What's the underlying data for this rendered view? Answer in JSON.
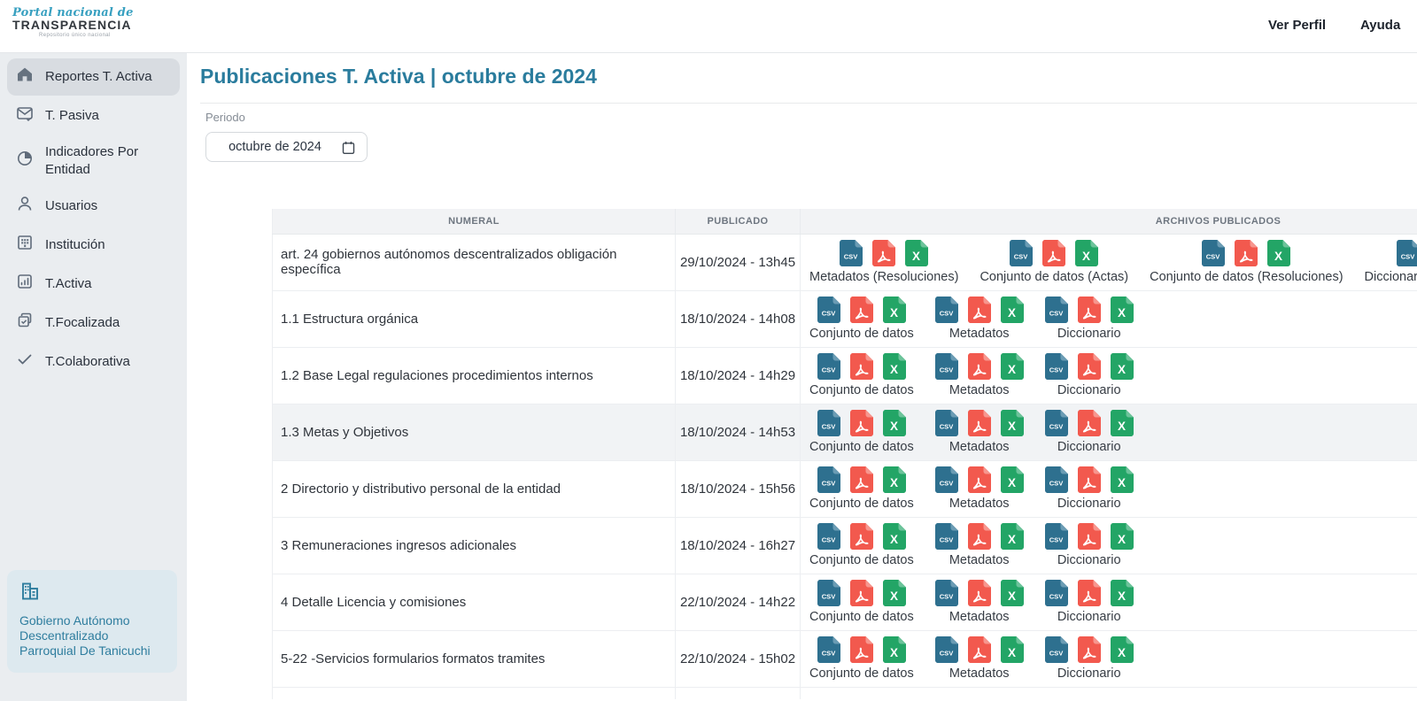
{
  "logo": {
    "line1": "Portal nacional de",
    "line2": "TRANSPARENCIA",
    "line3": "Repositorio único nacional"
  },
  "top_nav": {
    "ver_perfil": "Ver Perfil",
    "ayuda": "Ayuda"
  },
  "sidebar": {
    "items": [
      {
        "label": "Reportes T. Activa",
        "icon": "home-icon",
        "active": true
      },
      {
        "label": "T. Pasiva",
        "icon": "mail-icon",
        "active": false
      },
      {
        "label": "Indicadores Por Entidad",
        "icon": "pie-chart-icon",
        "active": false
      },
      {
        "label": "Usuarios",
        "icon": "user-icon",
        "active": false
      },
      {
        "label": "Institución",
        "icon": "building-icon",
        "active": false
      },
      {
        "label": "T.Activa",
        "icon": "bar-chart-icon",
        "active": false
      },
      {
        "label": "T.Focalizada",
        "icon": "copy-check-icon",
        "active": false
      },
      {
        "label": "T.Colaborativa",
        "icon": "check-icon",
        "active": false
      }
    ],
    "entity_name": "Gobierno Autónomo Descentralizado Parroquial De Tanicuchi",
    "entity_icon": "buildings-icon"
  },
  "main": {
    "title": "Publicaciones T. Activa | octubre de 2024",
    "period_label": "Periodo",
    "period_value": "octubre de 2024",
    "period_icon": "calendar-icon"
  },
  "table": {
    "columns": [
      "NUMERAL",
      "PUBLICADO",
      "ARCHIVOS PUBLICADOS"
    ],
    "rows": [
      {
        "numeral": "art. 24 gobiernos autónomos descentralizados obligación específica",
        "publicado": "29/10/2024 - 13h45",
        "highlight": false,
        "archivos": [
          {
            "label": "Metadatos (Resoluciones)",
            "files": [
              "csv",
              "pdf",
              "xls"
            ]
          },
          {
            "label": "Conjunto de datos (Actas)",
            "files": [
              "csv",
              "pdf",
              "xls"
            ]
          },
          {
            "label": "Conjunto de datos (Resoluciones)",
            "files": [
              "csv",
              "pdf",
              "xls"
            ]
          },
          {
            "label": "Diccionario (Resoluciones)",
            "files": [
              "csv",
              "pdf",
              "xls"
            ]
          }
        ]
      },
      {
        "numeral": "1.1 Estructura orgánica",
        "publicado": "18/10/2024 - 14h08",
        "highlight": false,
        "archivos": [
          {
            "label": "Conjunto de datos",
            "files": [
              "csv",
              "pdf",
              "xls"
            ]
          },
          {
            "label": "Metadatos",
            "files": [
              "csv",
              "pdf",
              "xls"
            ]
          },
          {
            "label": "Diccionario",
            "files": [
              "csv",
              "pdf",
              "xls"
            ]
          }
        ]
      },
      {
        "numeral": "1.2 Base Legal regulaciones procedimientos internos",
        "publicado": "18/10/2024 - 14h29",
        "highlight": false,
        "archivos": [
          {
            "label": "Conjunto de datos",
            "files": [
              "csv",
              "pdf",
              "xls"
            ]
          },
          {
            "label": "Metadatos",
            "files": [
              "csv",
              "pdf",
              "xls"
            ]
          },
          {
            "label": "Diccionario",
            "files": [
              "csv",
              "pdf",
              "xls"
            ]
          }
        ]
      },
      {
        "numeral": "1.3 Metas y Objetivos",
        "publicado": "18/10/2024 - 14h53",
        "highlight": true,
        "archivos": [
          {
            "label": "Conjunto de datos",
            "files": [
              "csv",
              "pdf",
              "xls"
            ]
          },
          {
            "label": "Metadatos",
            "files": [
              "csv",
              "pdf",
              "xls"
            ]
          },
          {
            "label": "Diccionario",
            "files": [
              "csv",
              "pdf",
              "xls"
            ]
          }
        ]
      },
      {
        "numeral": "2 Directorio y distributivo personal de la entidad",
        "publicado": "18/10/2024 - 15h56",
        "highlight": false,
        "archivos": [
          {
            "label": "Conjunto de datos",
            "files": [
              "csv",
              "pdf",
              "xls"
            ]
          },
          {
            "label": "Metadatos",
            "files": [
              "csv",
              "pdf",
              "xls"
            ]
          },
          {
            "label": "Diccionario",
            "files": [
              "csv",
              "pdf",
              "xls"
            ]
          }
        ]
      },
      {
        "numeral": "3 Remuneraciones ingresos adicionales",
        "publicado": "18/10/2024 - 16h27",
        "highlight": false,
        "archivos": [
          {
            "label": "Conjunto de datos",
            "files": [
              "csv",
              "pdf",
              "xls"
            ]
          },
          {
            "label": "Metadatos",
            "files": [
              "csv",
              "pdf",
              "xls"
            ]
          },
          {
            "label": "Diccionario",
            "files": [
              "csv",
              "pdf",
              "xls"
            ]
          }
        ]
      },
      {
        "numeral": "4 Detalle Licencia y comisiones",
        "publicado": "22/10/2024 - 14h22",
        "highlight": false,
        "archivos": [
          {
            "label": "Conjunto de datos",
            "files": [
              "csv",
              "pdf",
              "xls"
            ]
          },
          {
            "label": "Metadatos",
            "files": [
              "csv",
              "pdf",
              "xls"
            ]
          },
          {
            "label": "Diccionario",
            "files": [
              "csv",
              "pdf",
              "xls"
            ]
          }
        ]
      },
      {
        "numeral": "5-22 -Servicios formularios formatos tramites",
        "publicado": "22/10/2024 - 15h02",
        "highlight": false,
        "archivos": [
          {
            "label": "Conjunto de datos",
            "files": [
              "csv",
              "pdf",
              "xls"
            ]
          },
          {
            "label": "Metadatos",
            "files": [
              "csv",
              "pdf",
              "xls"
            ]
          },
          {
            "label": "Diccionario",
            "files": [
              "csv",
              "pdf",
              "xls"
            ]
          }
        ]
      }
    ]
  },
  "colors": {
    "accent_title": "#2a7c9d",
    "sidebar_bg": "#eaedf0",
    "active_item_bg": "#d8dce1",
    "entity_card_bg": "#dde9ef",
    "entity_text": "#2e7d9e",
    "table_header_bg": "#f2f3f5",
    "row_highlight_bg": "#f1f3f5",
    "csv_icon": "#2e708f",
    "pdf_icon": "#f2594e",
    "xls_icon": "#23a566"
  }
}
